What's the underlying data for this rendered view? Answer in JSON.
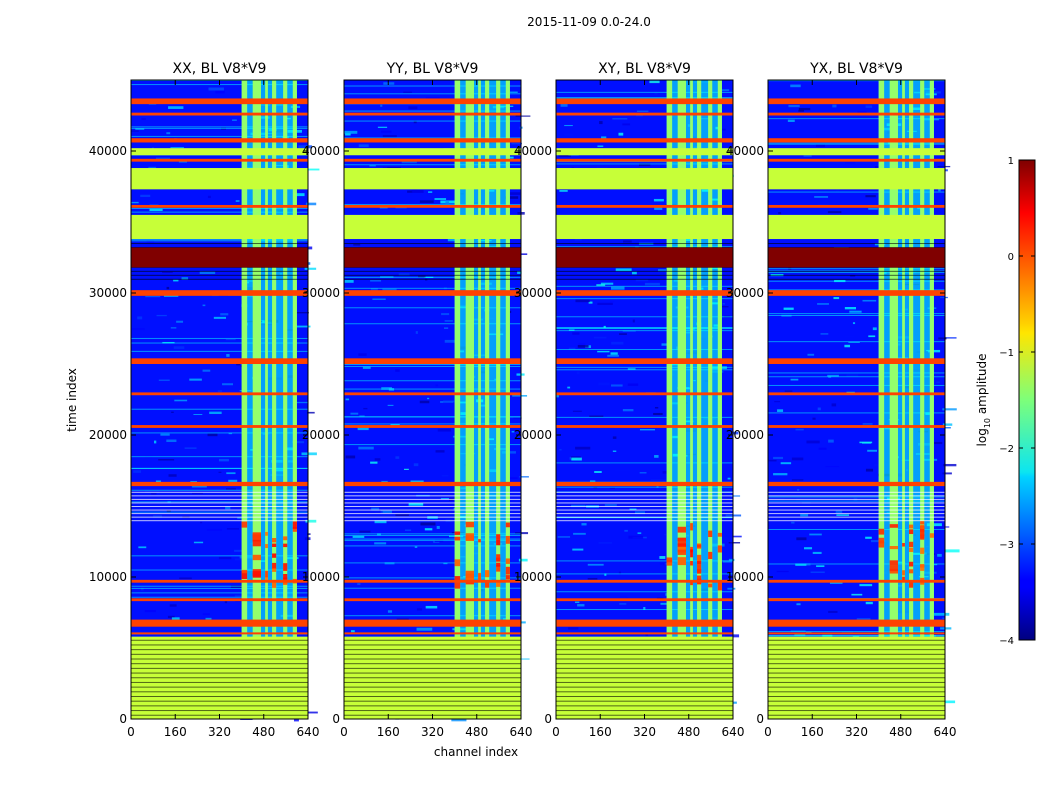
{
  "chart_data": {
    "type": "heatmap",
    "suptitle": "2015-11-09 0.0-24.0",
    "xlabel": "channel index",
    "ylabel": "time index",
    "x_range": [
      0,
      640
    ],
    "y_range": [
      0,
      45000
    ],
    "x_ticks": [
      0,
      160,
      320,
      480,
      640
    ],
    "y_ticks": [
      0,
      10000,
      20000,
      30000,
      40000
    ],
    "colormap": "jet",
    "colorbar": {
      "label": "log10 amplitude",
      "label_main": "log",
      "label_sub": "10",
      "label_rest": " amplitude",
      "range": [
        -4,
        1
      ],
      "ticks": [
        1,
        0,
        -1,
        -2,
        -3,
        -4
      ],
      "tick_labels": [
        "1",
        "0",
        "−1",
        "−2",
        "−3",
        "−4"
      ]
    },
    "panels": [
      {
        "title": "XX, BL V8*V9"
      },
      {
        "title": "YY, BL V8*V9"
      },
      {
        "title": "XY, BL V8*V9"
      },
      {
        "title": "YX, BL V8*V9"
      }
    ],
    "features": {
      "background_level": -3.3,
      "flagged_level": -1.15,
      "flagged_time_ranges": [
        [
          33800,
          35500
        ],
        [
          37300,
          38800
        ],
        [
          39700,
          40200
        ],
        [
          0,
          5800
        ]
      ],
      "high_rows": [
        [
          31800,
          33200,
          1.0
        ]
      ],
      "orange_rows": [
        [
          43300,
          43700
        ],
        [
          42500,
          42700
        ],
        [
          40600,
          40900
        ],
        [
          39250,
          39450
        ],
        [
          36000,
          36200
        ],
        [
          29800,
          30200
        ],
        [
          25000,
          25400
        ],
        [
          22800,
          23000
        ],
        [
          20500,
          20700
        ],
        [
          16400,
          16700
        ],
        [
          9600,
          9800
        ],
        [
          8300,
          8500
        ],
        [
          6500,
          7000
        ],
        [
          6000,
          6100
        ]
      ],
      "bright_channel_bands": [
        [
          400,
          420
        ],
        [
          440,
          470
        ],
        [
          485,
          495
        ],
        [
          510,
          525
        ],
        [
          550,
          565
        ],
        [
          585,
          600
        ]
      ],
      "bright_channel_range": [
        400,
        600
      ],
      "band_level": -1.4
    }
  }
}
